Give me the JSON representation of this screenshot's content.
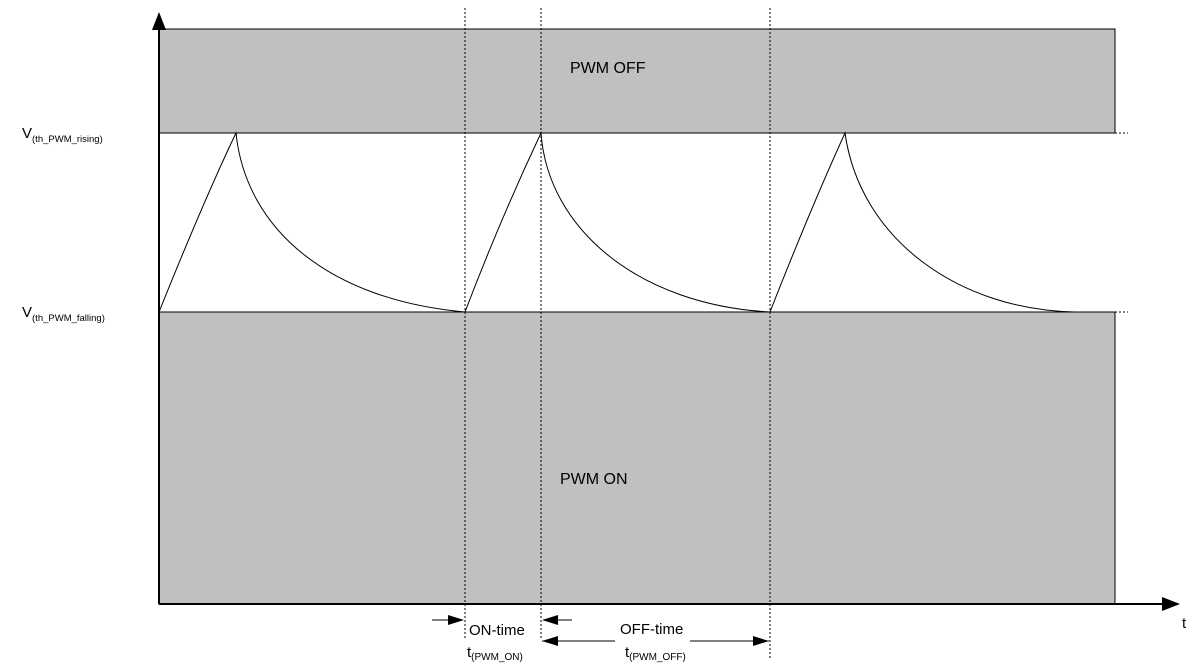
{
  "regions": {
    "off_label": "PWM OFF",
    "on_label": "PWM ON"
  },
  "thresholds": {
    "rising": {
      "symbol": "V",
      "subscript": "(th_PWM_rising)"
    },
    "falling": {
      "symbol": "V",
      "subscript": "(th_PWM_falling)"
    }
  },
  "axis": {
    "x_label": "t"
  },
  "timing": {
    "on_time_label": "ON-time",
    "on_time_symbol": "t",
    "on_time_subscript": "(PWM_ON)",
    "off_time_label": "OFF-time",
    "off_time_symbol": "t",
    "off_time_subscript": "(PWM_OFF)"
  },
  "colors": {
    "region_fill": "#c0c0c0",
    "line": "#000000",
    "background": "#ffffff"
  }
}
